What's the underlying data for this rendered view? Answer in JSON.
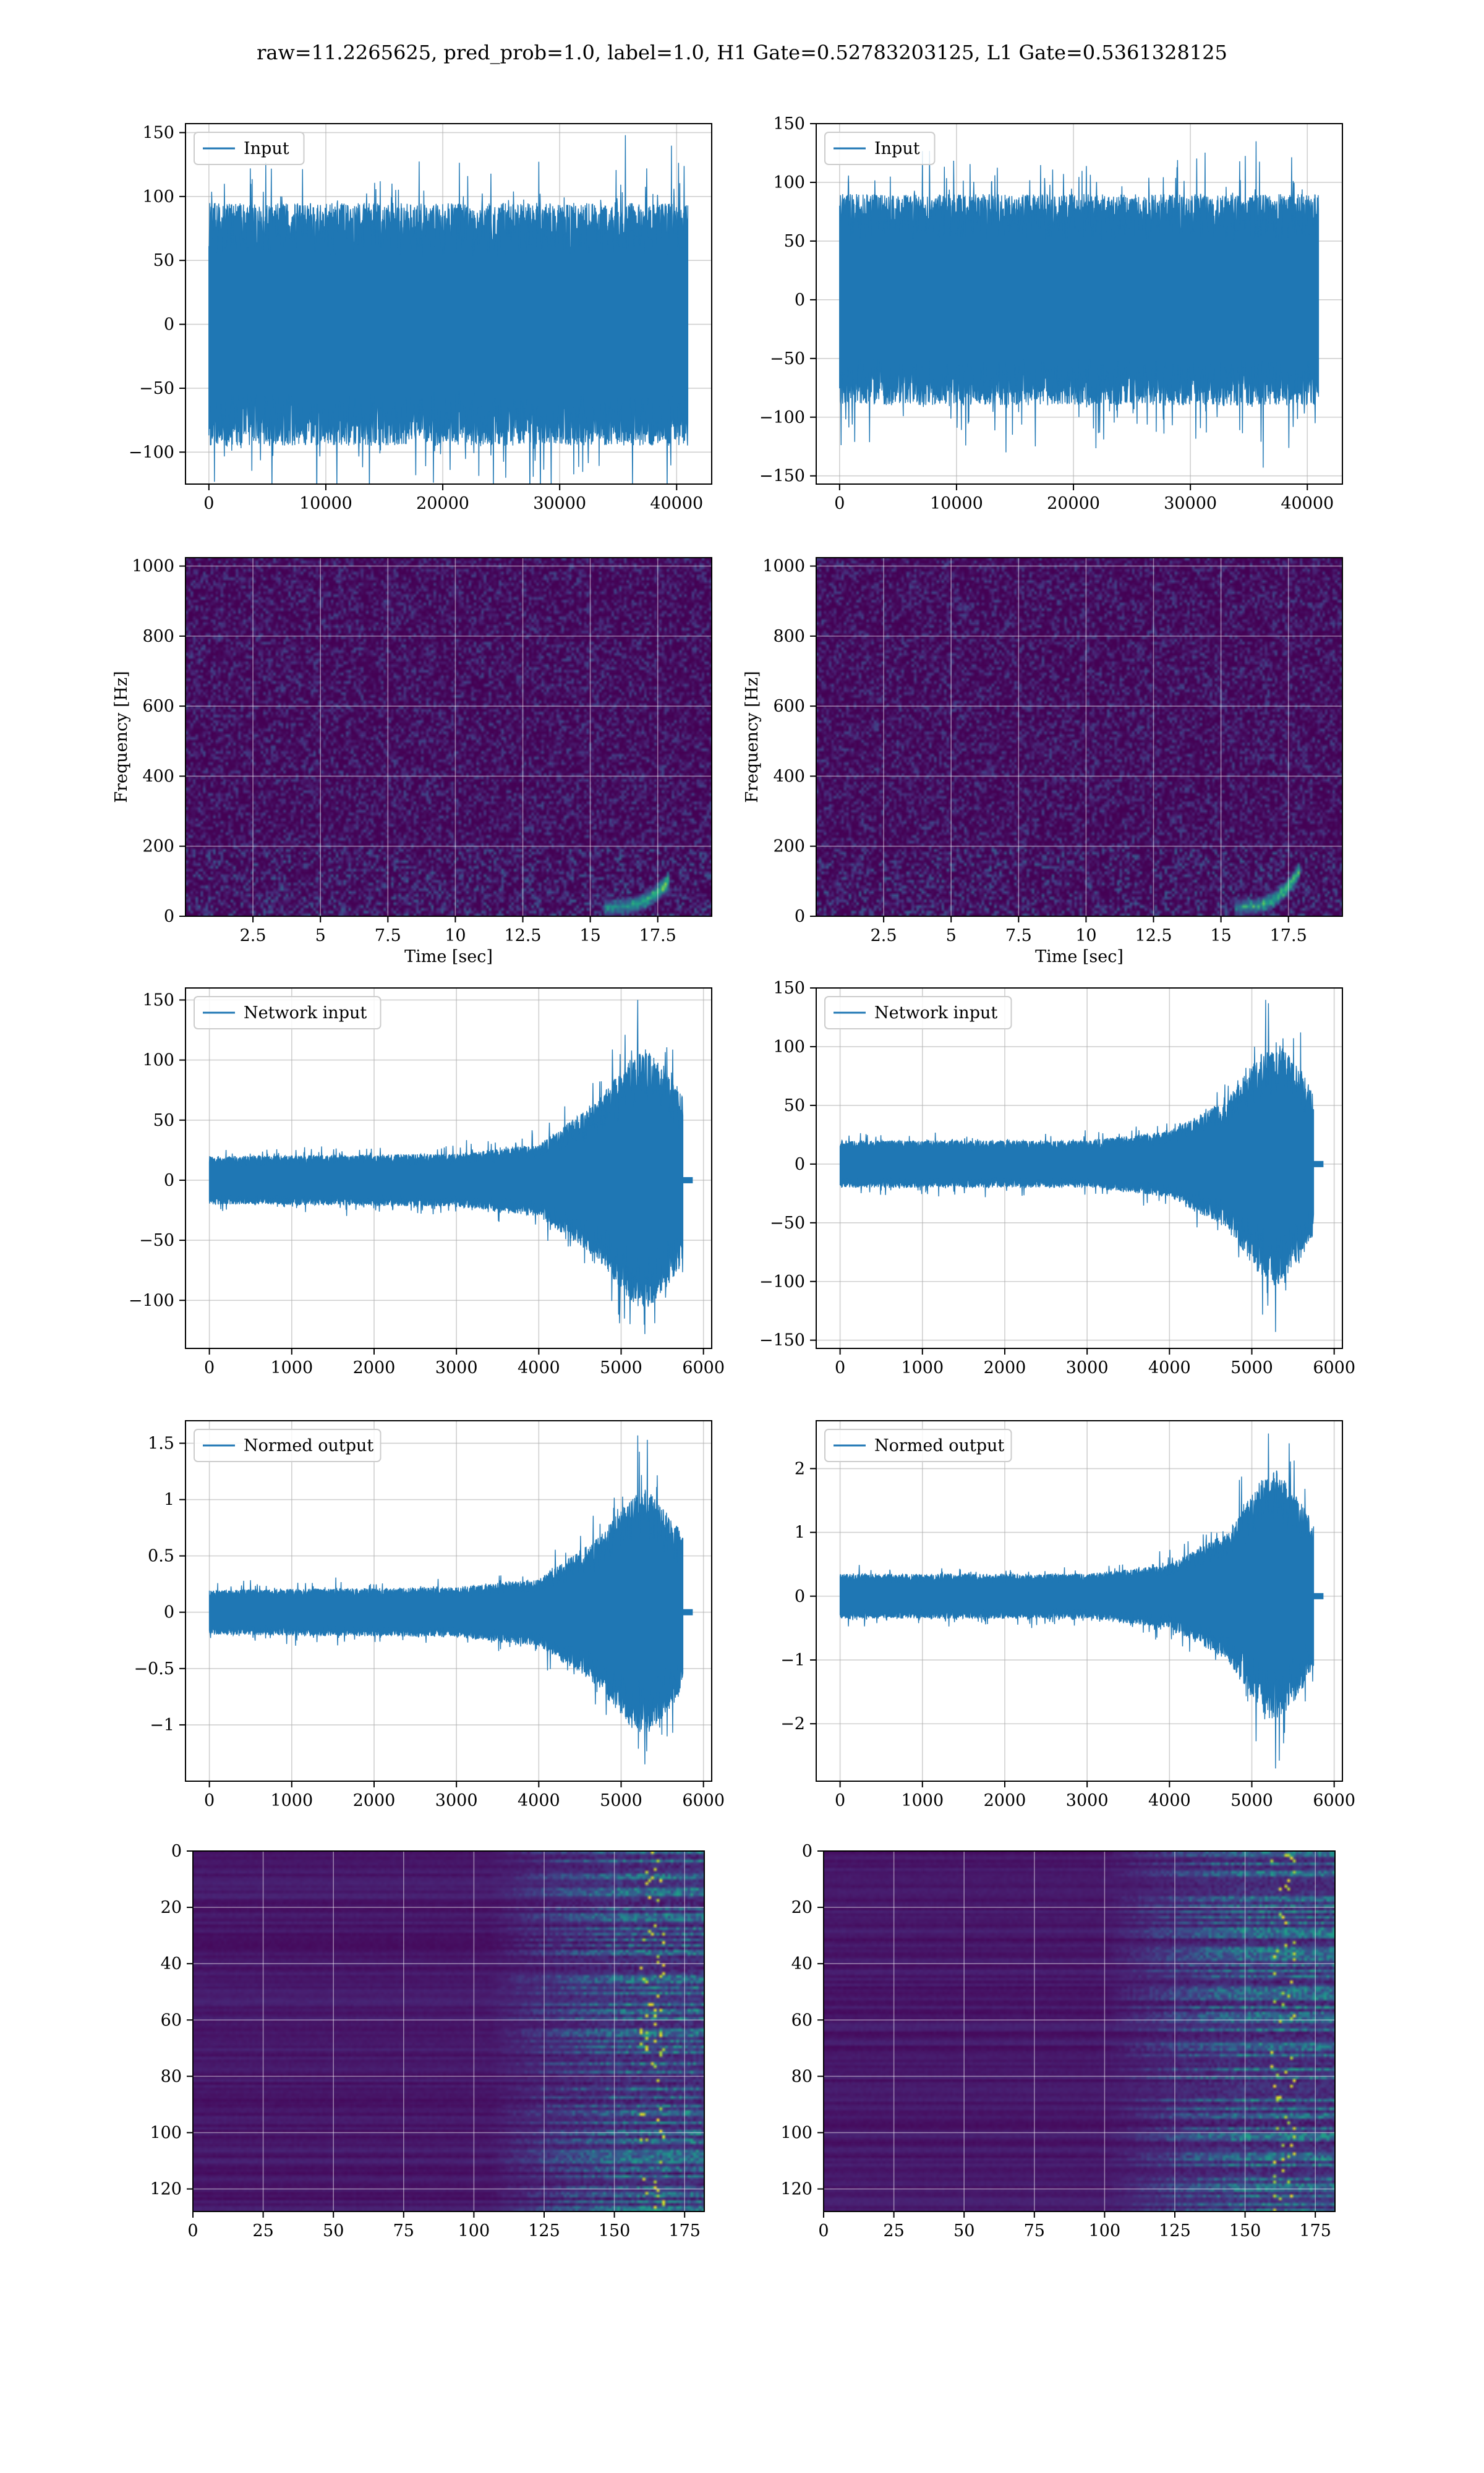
{
  "figure": {
    "suptitle": "raw=11.2265625, pred_prob=1.0, label=1.0, H1 Gate=0.52783203125, L1 Gate=0.5361328125"
  },
  "colors": {
    "line": "#1f77b4",
    "viridis_low": "#440154",
    "viridis_mid": "#21918c",
    "viridis_high": "#fde725",
    "grid": "#b0b0b0"
  },
  "chart_data": [
    {
      "id": "h1-input",
      "type": "line",
      "legend": "Input",
      "legend_position": "upper-left",
      "xlim": [
        -2000,
        43000
      ],
      "ylim": [
        -125,
        157
      ],
      "xticks": [
        0,
        10000,
        20000,
        30000,
        40000
      ],
      "yticks": [
        -100,
        -50,
        0,
        50,
        100,
        150
      ],
      "grid": true,
      "signal": {
        "n": 40960,
        "envelope": [
          [
            0,
            95
          ],
          [
            36000,
            95
          ],
          [
            41000,
            95
          ]
        ],
        "peak_max": 148,
        "peak_min": -128,
        "tail": false
      }
    },
    {
      "id": "l1-input",
      "type": "line",
      "legend": "Input",
      "legend_position": "upper-left",
      "xlim": [
        -2000,
        43000
      ],
      "ylim": [
        -157,
        150
      ],
      "xticks": [
        0,
        10000,
        20000,
        30000,
        40000
      ],
      "yticks": [
        -150,
        -100,
        -50,
        0,
        50,
        100,
        150
      ],
      "grid": true,
      "signal": {
        "n": 40960,
        "envelope": [
          [
            0,
            90
          ],
          [
            41000,
            90
          ]
        ],
        "peak_max": 135,
        "peak_min": -143,
        "tail": false
      }
    },
    {
      "id": "h1-spectrogram",
      "type": "heatmap",
      "ylabel": "Frequency [Hz]",
      "xlabel": "Time [sec]",
      "xlim": [
        0,
        19.5
      ],
      "ylim": [
        0,
        1024
      ],
      "xticks": [
        2.5,
        5.0,
        7.5,
        10.0,
        12.5,
        15.0,
        17.5
      ],
      "yticks": [
        0,
        200,
        400,
        600,
        800,
        1000
      ],
      "grid": true,
      "colormap": "viridis",
      "chirp": {
        "t_start": 15.5,
        "t_merge": 17.9,
        "f_start": 30,
        "f_merge": 110
      }
    },
    {
      "id": "l1-spectrogram",
      "type": "heatmap",
      "ylabel": "Frequency [Hz]",
      "xlabel": "Time [sec]",
      "xlim": [
        0,
        19.5
      ],
      "ylim": [
        0,
        1024
      ],
      "xticks": [
        2.5,
        5.0,
        7.5,
        10.0,
        12.5,
        15.0,
        17.5
      ],
      "yticks": [
        0,
        200,
        400,
        600,
        800,
        1000
      ],
      "grid": true,
      "colormap": "viridis",
      "chirp": {
        "t_start": 15.5,
        "t_merge": 17.9,
        "f_start": 30,
        "f_merge": 140
      }
    },
    {
      "id": "h1-network-input",
      "type": "line",
      "legend": "Network input",
      "legend_position": "upper-left",
      "xlim": [
        -290,
        6100
      ],
      "ylim": [
        -140,
        160
      ],
      "xticks": [
        0,
        1000,
        2000,
        3000,
        4000,
        5000,
        6000
      ],
      "yticks": [
        -100,
        -50,
        0,
        50,
        100,
        150
      ],
      "grid": true,
      "signal": {
        "n": 5750,
        "envelope": [
          [
            0,
            20
          ],
          [
            3000,
            22
          ],
          [
            4000,
            30
          ],
          [
            4700,
            65
          ],
          [
            5100,
            100
          ],
          [
            5300,
            110
          ],
          [
            5600,
            85
          ],
          [
            5750,
            70
          ]
        ],
        "peak_max": 150,
        "peak_min": -128,
        "tail": true
      }
    },
    {
      "id": "l1-network-input",
      "type": "line",
      "legend": "Network input",
      "legend_position": "upper-left",
      "xlim": [
        -290,
        6100
      ],
      "ylim": [
        -157,
        150
      ],
      "xticks": [
        0,
        1000,
        2000,
        3000,
        4000,
        5000,
        6000
      ],
      "yticks": [
        -150,
        -100,
        -50,
        0,
        50,
        100,
        150
      ],
      "grid": true,
      "signal": {
        "n": 5750,
        "envelope": [
          [
            0,
            20
          ],
          [
            3000,
            20
          ],
          [
            4000,
            28
          ],
          [
            4700,
            55
          ],
          [
            5100,
            95
          ],
          [
            5300,
            105
          ],
          [
            5600,
            80
          ],
          [
            5750,
            60
          ]
        ],
        "peak_max": 137,
        "peak_min": -143,
        "tail": true
      }
    },
    {
      "id": "h1-normed-output",
      "type": "line",
      "legend": "Normed output",
      "legend_position": "upper-left",
      "xlim": [
        -290,
        6100
      ],
      "ylim": [
        -1.5,
        1.7
      ],
      "xticks": [
        0,
        1000,
        2000,
        3000,
        4000,
        5000,
        6000
      ],
      "yticks": [
        -1.0,
        -0.5,
        0.0,
        0.5,
        1.0,
        1.5
      ],
      "grid": true,
      "signal": {
        "n": 5750,
        "envelope": [
          [
            0,
            0.2
          ],
          [
            3000,
            0.22
          ],
          [
            4000,
            0.3
          ],
          [
            4700,
            0.65
          ],
          [
            5100,
            1.0
          ],
          [
            5300,
            1.1
          ],
          [
            5600,
            0.85
          ],
          [
            5750,
            0.7
          ]
        ],
        "peak_max": 1.57,
        "peak_min": -1.35,
        "tail": true
      }
    },
    {
      "id": "l1-normed-output",
      "type": "line",
      "legend": "Normed output",
      "legend_position": "upper-left",
      "xlim": [
        -290,
        6100
      ],
      "ylim": [
        -2.9,
        2.75
      ],
      "xticks": [
        0,
        1000,
        2000,
        3000,
        4000,
        5000,
        6000
      ],
      "yticks": [
        -2,
        -1,
        0,
        1,
        2
      ],
      "grid": true,
      "signal": {
        "n": 5750,
        "envelope": [
          [
            0,
            0.35
          ],
          [
            3000,
            0.35
          ],
          [
            4000,
            0.5
          ],
          [
            4700,
            1.0
          ],
          [
            5100,
            1.8
          ],
          [
            5300,
            2.0
          ],
          [
            5600,
            1.5
          ],
          [
            5750,
            1.1
          ]
        ],
        "peak_max": 2.55,
        "peak_min": -2.7,
        "tail": true
      }
    },
    {
      "id": "h1-feature-map",
      "type": "heatmap",
      "colormap": "viridis",
      "xlim": [
        0,
        182
      ],
      "ylim": [
        128,
        0
      ],
      "xticks": [
        0,
        25,
        50,
        75,
        100,
        125,
        150,
        175
      ],
      "yticks": [
        0,
        20,
        40,
        60,
        80,
        100,
        120
      ],
      "grid": true,
      "activity": {
        "onset_col": 105,
        "strong_col": 125,
        "cols": 182,
        "rows": 128
      }
    },
    {
      "id": "l1-feature-map",
      "type": "heatmap",
      "colormap": "viridis",
      "xlim": [
        0,
        182
      ],
      "ylim": [
        128,
        0
      ],
      "xticks": [
        0,
        25,
        50,
        75,
        100,
        125,
        150,
        175
      ],
      "yticks": [
        0,
        20,
        40,
        60,
        80,
        100,
        120
      ],
      "grid": true,
      "activity": {
        "onset_col": 100,
        "strong_col": 120,
        "cols": 182,
        "rows": 128
      }
    }
  ]
}
